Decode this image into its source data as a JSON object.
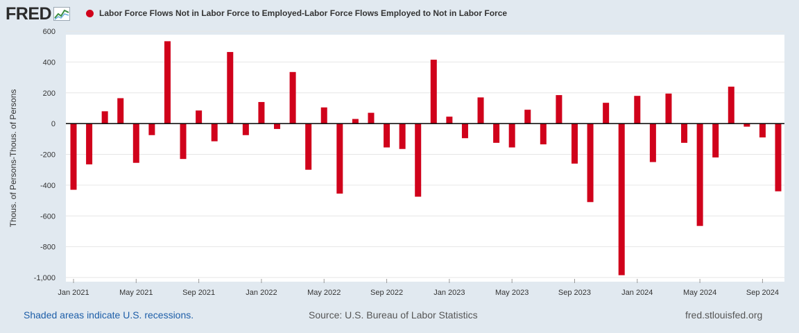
{
  "header": {
    "logo_text": "FRED",
    "logo_icon": "line-chart-icon"
  },
  "legend": {
    "label": "Labor Force Flows Not in Labor Force to Employed-Labor Force Flows Employed to Not in Labor Force",
    "color": "#d0021b"
  },
  "footer": {
    "recession_note": "Shaded areas indicate U.S. recessions.",
    "source": "Source: U.S. Bureau of Labor Statistics",
    "site": "fred.stlouisfed.org"
  },
  "chart_data": {
    "type": "bar",
    "title": "",
    "ylabel": "Thous. of Persons-Thous. of Persons",
    "xlabel": "",
    "ylim": [
      -1000,
      600
    ],
    "yticks": [
      600,
      400,
      200,
      0,
      -200,
      -400,
      -600,
      -800,
      -1000
    ],
    "ytick_labels": [
      "600",
      "400",
      "200",
      "0",
      "-200",
      "-400",
      "-600",
      "-800",
      "-1,000"
    ],
    "xtick_labels": [
      "Jan 2021",
      "May 2021",
      "Sep 2021",
      "Jan 2022",
      "May 2022",
      "Sep 2022",
      "Jan 2023",
      "May 2023",
      "Sep 2023",
      "Jan 2024",
      "May 2024",
      "Sep 2024"
    ],
    "xtick_every": 4,
    "bar_color": "#d0021b",
    "grid": true,
    "categories": [
      "2021-01",
      "2021-02",
      "2021-03",
      "2021-04",
      "2021-05",
      "2021-06",
      "2021-07",
      "2021-08",
      "2021-09",
      "2021-10",
      "2021-11",
      "2021-12",
      "2022-01",
      "2022-02",
      "2022-03",
      "2022-04",
      "2022-05",
      "2022-06",
      "2022-07",
      "2022-08",
      "2022-09",
      "2022-10",
      "2022-11",
      "2022-12",
      "2023-01",
      "2023-02",
      "2023-03",
      "2023-04",
      "2023-05",
      "2023-06",
      "2023-07",
      "2023-08",
      "2023-09",
      "2023-10",
      "2023-11",
      "2023-12",
      "2024-01",
      "2024-02",
      "2024-03",
      "2024-04",
      "2024-05",
      "2024-06",
      "2024-07",
      "2024-08",
      "2024-09",
      "2024-10"
    ],
    "values": [
      -430,
      -265,
      80,
      165,
      -255,
      -75,
      535,
      -230,
      85,
      -115,
      465,
      -75,
      140,
      -35,
      335,
      -300,
      105,
      -455,
      30,
      70,
      -155,
      -165,
      -475,
      415,
      45,
      -95,
      170,
      -125,
      -155,
      90,
      -135,
      185,
      -260,
      -510,
      135,
      -985,
      180,
      -250,
      195,
      -125,
      -665,
      -220,
      240,
      -20,
      -90,
      -440
    ]
  }
}
